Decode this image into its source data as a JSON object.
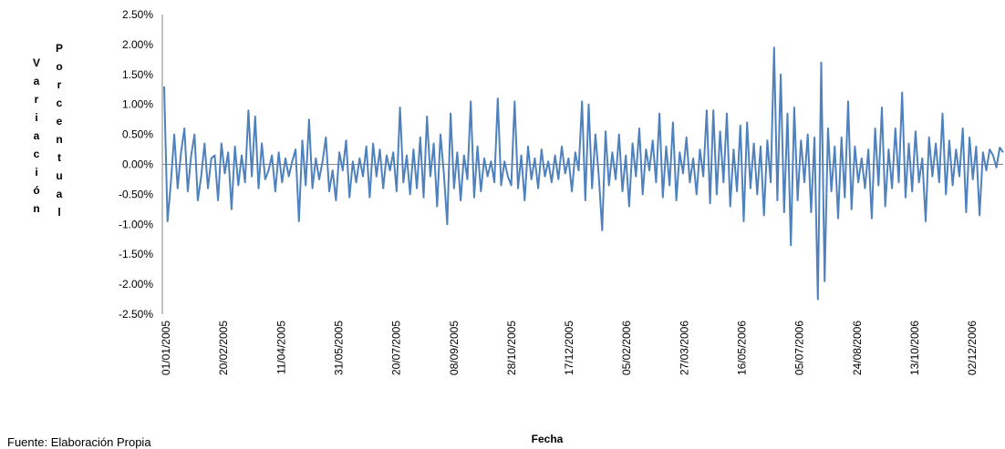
{
  "chart_data": {
    "type": "line",
    "xlabel": "Fecha",
    "ylabel_col1": "Variación",
    "ylabel_col2": "Porcentual",
    "ylim": [
      -0.025,
      0.025
    ],
    "yticks": [
      "2.50%",
      "2.00%",
      "1.50%",
      "1.00%",
      "0.50%",
      "0.00%",
      "-0.50%",
      "-1.00%",
      "-1.50%",
      "-2.00%",
      "-2.50%"
    ],
    "x_tick_labels": [
      "01/01/2005",
      "20/02/2005",
      "11/04/2005",
      "31/05/2005",
      "20/07/2005",
      "08/09/2005",
      "28/10/2005",
      "17/12/2005",
      "05/02/2006",
      "27/03/2006",
      "16/05/2006",
      "05/07/2006",
      "24/08/2006",
      "13/10/2006",
      "02/12/2006"
    ],
    "x_range": [
      "01/01/2005",
      "31/12/2006"
    ],
    "line_color": "#4f81bd",
    "series": [
      {
        "values_percent": [
          1.3,
          -0.95,
          -0.3,
          0.5,
          -0.4,
          0.2,
          0.6,
          -0.45,
          0.15,
          0.5,
          -0.6,
          -0.2,
          0.35,
          -0.4,
          0.1,
          0.15,
          -0.6,
          0.35,
          -0.15,
          0.2,
          -0.75,
          0.3,
          -0.35,
          0.15,
          -0.3,
          0.9,
          -0.2,
          0.8,
          -0.4,
          0.35,
          -0.25,
          -0.1,
          0.15,
          -0.45,
          0.2,
          -0.3,
          0.1,
          -0.2,
          0.05,
          0.25,
          -0.95,
          0.4,
          -0.35,
          0.75,
          -0.4,
          0.1,
          -0.25,
          0.05,
          0.45,
          -0.45,
          -0.1,
          -0.6,
          0.2,
          -0.1,
          0.4,
          -0.55,
          0.05,
          -0.3,
          0.1,
          -0.2,
          0.3,
          -0.55,
          0.35,
          -0.2,
          0.25,
          -0.4,
          0.15,
          -0.1,
          0.2,
          -0.45,
          0.95,
          -0.3,
          0.15,
          -0.5,
          0.25,
          -0.4,
          0.45,
          -0.55,
          0.8,
          -0.2,
          0.35,
          -0.7,
          0.5,
          -0.15,
          -1.0,
          0.85,
          -0.4,
          0.2,
          -0.6,
          0.15,
          -0.25,
          1.05,
          -0.55,
          0.3,
          -0.45,
          0.1,
          -0.2,
          0.05,
          -0.3,
          1.1,
          -0.35,
          0.05,
          -0.2,
          -0.35,
          1.05,
          -0.4,
          0.15,
          -0.6,
          0.3,
          -0.25,
          0.1,
          -0.4,
          0.25,
          -0.2,
          0.05,
          -0.3,
          0.15,
          -0.25,
          0.3,
          -0.15,
          0.1,
          -0.45,
          0.2,
          -0.1,
          1.05,
          -0.6,
          1.0,
          -0.4,
          0.5,
          -0.2,
          -1.1,
          0.55,
          -0.35,
          0.2,
          -0.25,
          0.5,
          -0.45,
          0.15,
          -0.7,
          0.35,
          -0.2,
          0.6,
          -0.5,
          0.25,
          -0.1,
          0.4,
          -0.3,
          0.85,
          -0.55,
          0.3,
          -0.35,
          0.7,
          -0.6,
          0.2,
          -0.15,
          0.45,
          -0.3,
          0.1,
          -0.5,
          0.25,
          -0.2,
          0.9,
          -0.65,
          0.9,
          -0.5,
          0.55,
          -0.3,
          0.85,
          -0.7,
          0.25,
          -0.45,
          0.65,
          -0.95,
          0.7,
          -0.4,
          0.35,
          -0.5,
          0.3,
          -0.85,
          0.4,
          -0.3,
          1.95,
          -0.6,
          1.5,
          -0.8,
          0.85,
          -1.35,
          0.95,
          -0.6,
          0.4,
          -0.3,
          0.5,
          -0.8,
          0.45,
          -2.25,
          1.7,
          -1.95,
          0.6,
          -0.45,
          0.3,
          -0.9,
          0.45,
          -0.55,
          1.05,
          -0.75,
          0.3,
          -0.3,
          0.1,
          -0.4,
          0.25,
          -0.9,
          0.6,
          -0.35,
          0.95,
          -0.7,
          0.25,
          -0.4,
          0.6,
          -0.3,
          1.2,
          -0.55,
          0.35,
          -0.45,
          0.55,
          -0.3,
          0.1,
          -0.95,
          0.45,
          -0.2,
          0.35,
          -0.3,
          0.85,
          -0.5,
          0.4,
          -0.35,
          0.25,
          -0.2,
          0.6,
          -0.8,
          0.45,
          -0.25,
          0.3,
          -0.85,
          0.2,
          -0.1,
          0.25,
          0.15,
          -0.05,
          0.28,
          0.2
        ]
      }
    ]
  },
  "footer": {
    "source": "Fuente: Elaboración Propia"
  }
}
